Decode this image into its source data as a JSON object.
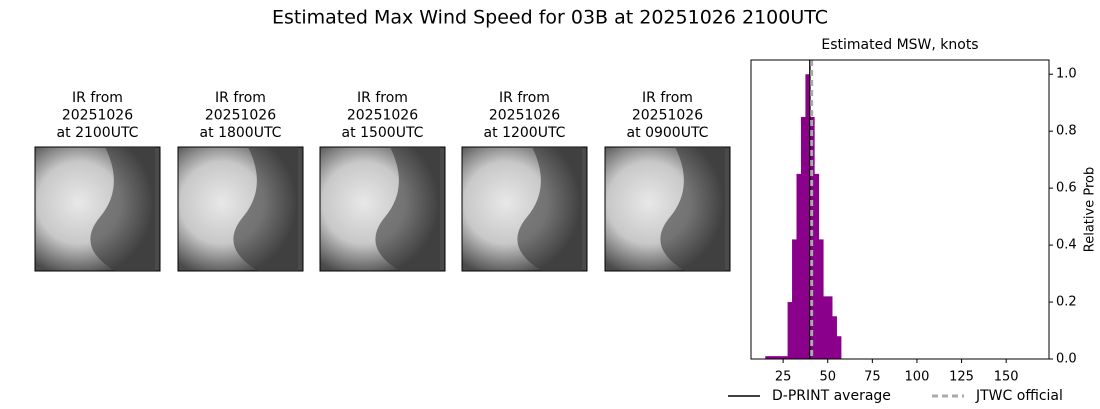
{
  "title": "Estimated Max Wind Speed for 03B at 20251026 2100UTC",
  "panels": [
    {
      "lines": [
        "IR from",
        "20251026",
        "at 2100UTC"
      ]
    },
    {
      "lines": [
        "IR from",
        "20251026",
        "at 1800UTC"
      ]
    },
    {
      "lines": [
        "IR from",
        "20251026",
        "at 1500UTC"
      ]
    },
    {
      "lines": [
        "IR from",
        "20251026",
        "at 1200UTC"
      ]
    },
    {
      "lines": [
        "IR from",
        "20251026",
        "at 0900UTC"
      ]
    }
  ],
  "chart_data": {
    "type": "histogram",
    "title": "Estimated MSW, knots",
    "y_label": "Relative Prob",
    "color": "#8b008b",
    "bins": [
      15,
      17.5,
      20,
      22.5,
      25,
      27.5,
      30,
      32.5,
      35,
      37.5,
      40,
      42.5,
      45,
      47.5,
      50,
      52.5,
      55,
      57.5
    ],
    "values": [
      0.01,
      0.01,
      0.01,
      0.01,
      0.01,
      0.2,
      0.42,
      0.65,
      0.85,
      1.0,
      0.85,
      0.65,
      0.42,
      0.22,
      0.22,
      0.15,
      0.08
    ],
    "xlim": [
      7,
      174
    ],
    "ylim": [
      0,
      1.05
    ],
    "xticks": [
      25,
      50,
      75,
      100,
      125,
      150
    ],
    "yticks": [
      {
        "value": 0,
        "label": "0.0"
      },
      0.2,
      0.4,
      0.6,
      0.8,
      {
        "value": 1,
        "label": "1.0"
      }
    ],
    "lines": [
      {
        "name": "D-PRINT average",
        "value": 40,
        "color": "#000000",
        "style": "solid"
      },
      {
        "name": "JTWC official",
        "value": 41,
        "color": "#aaaaaa",
        "style": "dashed"
      }
    ]
  }
}
